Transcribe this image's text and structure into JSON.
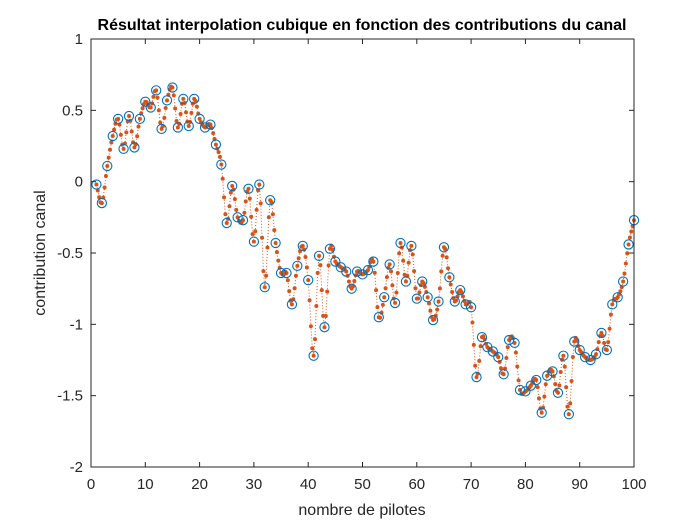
{
  "chart_data": {
    "type": "scatter",
    "title": "Résultat interpolation cubique en fonction des contributions du canal",
    "xlabel": "nombre de pilotes",
    "ylabel": "contribution canal",
    "xlim": [
      0,
      100
    ],
    "ylim": [
      -2,
      1
    ],
    "xticks": [
      0,
      10,
      20,
      30,
      40,
      50,
      60,
      70,
      80,
      90,
      100
    ],
    "yticks": [
      1,
      0.5,
      0,
      -0.5,
      -1,
      -1.5,
      -2
    ],
    "ytick_labels": [
      "1",
      "0.5",
      "0",
      "-0.5",
      "-1",
      "-1.5",
      "-2"
    ],
    "grid": false,
    "colors": {
      "pilots": "#0072BD",
      "interp": "#D95319",
      "axis": "#262626"
    },
    "series": [
      {
        "marker": "circle",
        "x": [
          1,
          2,
          3,
          4,
          5,
          6,
          7,
          8,
          9,
          10,
          11,
          12,
          13,
          14,
          15,
          16,
          17,
          18,
          19,
          20,
          21,
          22,
          23,
          24,
          25,
          26,
          27,
          28,
          29,
          30,
          31,
          32,
          33,
          34,
          35,
          36,
          37,
          38,
          39,
          40,
          41,
          42,
          43,
          44,
          45,
          46,
          47,
          48,
          49,
          50,
          51,
          52,
          53,
          54,
          55,
          56,
          57,
          58,
          59,
          60,
          61,
          62,
          63,
          64,
          65,
          66,
          67,
          68,
          69,
          70,
          71,
          72,
          73,
          74,
          75,
          76,
          77,
          78,
          79,
          80,
          81,
          82,
          83,
          84,
          85,
          86,
          87,
          88,
          89,
          90,
          91,
          92,
          93,
          94,
          95,
          96,
          97,
          98,
          99,
          100
        ],
        "y": [
          -0.02,
          -0.15,
          0.11,
          0.32,
          0.44,
          0.23,
          0.46,
          0.24,
          0.44,
          0.56,
          0.52,
          0.64,
          0.37,
          0.57,
          0.66,
          0.38,
          0.58,
          0.39,
          0.58,
          0.44,
          0.38,
          0.4,
          0.26,
          0.12,
          -0.29,
          -0.03,
          -0.25,
          -0.27,
          -0.05,
          -0.42,
          -0.02,
          -0.74,
          -0.13,
          -0.43,
          -0.64,
          -0.64,
          -0.86,
          -0.59,
          -0.45,
          -0.69,
          -1.22,
          -0.52,
          -1.02,
          -0.47,
          -0.56,
          -0.6,
          -0.63,
          -0.75,
          -0.63,
          -0.65,
          -0.62,
          -0.56,
          -0.95,
          -0.81,
          -0.58,
          -0.85,
          -0.43,
          -0.7,
          -0.45,
          -0.82,
          -0.7,
          -0.81,
          -0.97,
          -0.84,
          -0.46,
          -0.67,
          -0.84,
          -0.76,
          -0.86,
          -0.88,
          -1.37,
          -1.09,
          -1.16,
          -1.19,
          -1.23,
          -1.35,
          -1.11,
          -1.13,
          -1.46,
          -1.47,
          -1.43,
          -1.39,
          -1.62,
          -1.36,
          -1.33,
          -1.48,
          -1.22,
          -1.63,
          -1.12,
          -1.18,
          -1.23,
          -1.25,
          -1.21,
          -1.06,
          -1.18,
          -0.86,
          -0.81,
          -0.7,
          -0.44,
          -0.27
        ]
      },
      {
        "marker": "dot-dotted-line",
        "x": [
          1,
          2,
          3,
          4,
          5,
          6,
          7,
          8,
          9,
          10,
          11,
          12,
          13,
          14,
          15,
          16,
          17,
          18,
          19,
          20,
          21,
          22,
          23,
          24,
          25,
          26,
          27,
          28,
          29,
          30,
          31,
          32,
          33,
          34,
          35,
          36,
          37,
          38,
          39,
          40,
          41,
          42,
          43,
          44,
          45,
          46,
          47,
          48,
          49,
          50,
          51,
          52,
          53,
          54,
          55,
          56,
          57,
          58,
          59,
          60,
          61,
          62,
          63,
          64,
          65,
          66,
          67,
          68,
          69,
          70,
          71,
          72,
          73,
          74,
          75,
          76,
          77,
          78,
          79,
          80,
          81,
          82,
          83,
          84,
          85,
          86,
          87,
          88,
          89,
          90,
          91,
          92,
          93,
          94,
          95,
          96,
          97,
          98,
          99,
          100
        ],
        "y": [
          -0.02,
          -0.15,
          0.11,
          0.32,
          0.44,
          0.23,
          0.46,
          0.24,
          0.44,
          0.56,
          0.52,
          0.64,
          0.37,
          0.57,
          0.66,
          0.38,
          0.58,
          0.39,
          0.58,
          0.44,
          0.38,
          0.4,
          0.26,
          0.12,
          -0.29,
          -0.03,
          -0.25,
          -0.27,
          -0.05,
          -0.42,
          -0.02,
          -0.74,
          -0.13,
          -0.43,
          -0.64,
          -0.64,
          -0.86,
          -0.59,
          -0.45,
          -0.69,
          -1.22,
          -0.52,
          -1.02,
          -0.47,
          -0.56,
          -0.6,
          -0.63,
          -0.75,
          -0.63,
          -0.65,
          -0.62,
          -0.56,
          -0.95,
          -0.81,
          -0.58,
          -0.85,
          -0.43,
          -0.7,
          -0.45,
          -0.82,
          -0.7,
          -0.81,
          -0.97,
          -0.84,
          -0.46,
          -0.67,
          -0.84,
          -0.76,
          -0.86,
          -0.88,
          -1.37,
          -1.09,
          -1.16,
          -1.19,
          -1.23,
          -1.35,
          -1.11,
          -1.13,
          -1.46,
          -1.47,
          -1.43,
          -1.39,
          -1.62,
          -1.36,
          -1.33,
          -1.48,
          -1.22,
          -1.63,
          -1.12,
          -1.18,
          -1.23,
          -1.25,
          -1.21,
          -1.06,
          -1.18,
          -0.86,
          -0.81,
          -0.7,
          -0.44,
          -0.27
        ],
        "upsample": 4
      }
    ]
  }
}
